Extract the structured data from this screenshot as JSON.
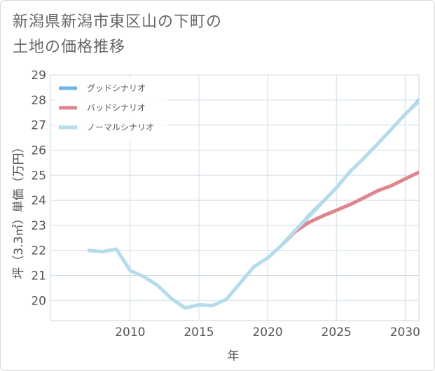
{
  "title": {
    "line1": "新潟県新潟市東区山の下町の",
    "line2": "土地の価格推移"
  },
  "chart_data": {
    "type": "line",
    "xlabel": "年",
    "ylabel": "坪（3.3㎡）単価（万円）",
    "xlim": [
      2004.2,
      2031
    ],
    "ylim": [
      19.2,
      29
    ],
    "xticks": [
      2010,
      2015,
      2020,
      2025,
      2030
    ],
    "yticks": [
      20,
      21,
      22,
      23,
      24,
      25,
      26,
      27,
      28,
      29
    ],
    "grid": true,
    "legend_position": "top-left",
    "series": [
      {
        "name": "グッドシナリオ",
        "color": "#6cb4e4",
        "x": [
          2021,
          2022,
          2023,
          2024,
          2025,
          2026,
          2027,
          2028,
          2029,
          2030,
          2031
        ],
        "y": [
          22.2,
          22.8,
          23.4,
          23.95,
          24.5,
          25.15,
          25.68,
          26.25,
          26.83,
          27.43,
          28.0
        ]
      },
      {
        "name": "バッドシナリオ",
        "color": "#e0848f",
        "x": [
          2021,
          2022,
          2023,
          2024,
          2025,
          2026,
          2027,
          2028,
          2029,
          2030,
          2031
        ],
        "y": [
          22.2,
          22.75,
          23.12,
          23.37,
          23.6,
          23.83,
          24.1,
          24.38,
          24.58,
          24.85,
          25.12
        ]
      },
      {
        "name": "ノーマルシナリオ",
        "color": "#b5dcea",
        "x": [
          2007,
          2008,
          2009,
          2010,
          2011,
          2012,
          2013,
          2014,
          2015,
          2016,
          2017,
          2018,
          2019,
          2020,
          2021,
          2022,
          2023,
          2024,
          2025,
          2026,
          2027,
          2028,
          2029,
          2030,
          2031
        ],
        "y": [
          22.0,
          21.95,
          22.05,
          21.2,
          20.95,
          20.6,
          20.08,
          19.7,
          19.83,
          19.8,
          20.05,
          20.7,
          21.35,
          21.7,
          22.2,
          22.8,
          23.35,
          23.92,
          24.5,
          25.15,
          25.68,
          26.25,
          26.83,
          27.43,
          27.95
        ]
      }
    ]
  }
}
